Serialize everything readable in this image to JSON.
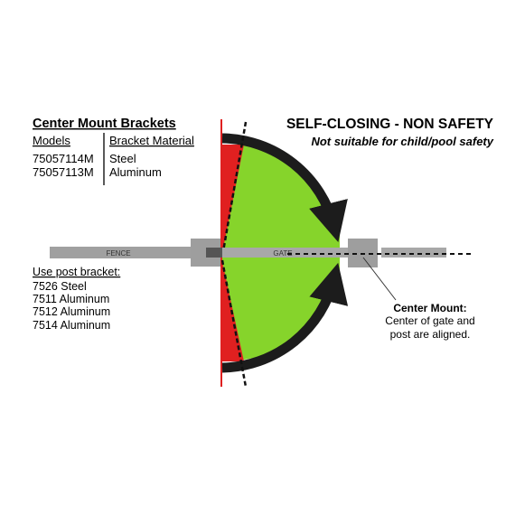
{
  "brackets": {
    "title": "Center Mount Brackets",
    "col_models": "Models",
    "col_material": "Bracket Material",
    "rows": [
      {
        "model": "75057114M",
        "material": "Steel"
      },
      {
        "model": "75057113M",
        "material": "Aluminum"
      }
    ]
  },
  "heading": {
    "title": "SELF-CLOSING - NON SAFETY",
    "subtitle": "Not suitable for child/pool safety"
  },
  "labels": {
    "fence": "FENCE",
    "gate": "GATE"
  },
  "post_bracket": {
    "title": "Use post bracket:",
    "items": [
      "7526 Steel",
      "7511 Aluminum",
      "7512 Aluminum",
      "7514 Aluminum"
    ]
  },
  "callout": {
    "title": "Center Mount:",
    "line1": "Center of gate and",
    "line2": "post are aligned."
  },
  "colors": {
    "swing_area": "#86d42b",
    "danger_area": "#e02020",
    "arrow": "#1c1c1c",
    "hardware": "#9e9e9e"
  }
}
